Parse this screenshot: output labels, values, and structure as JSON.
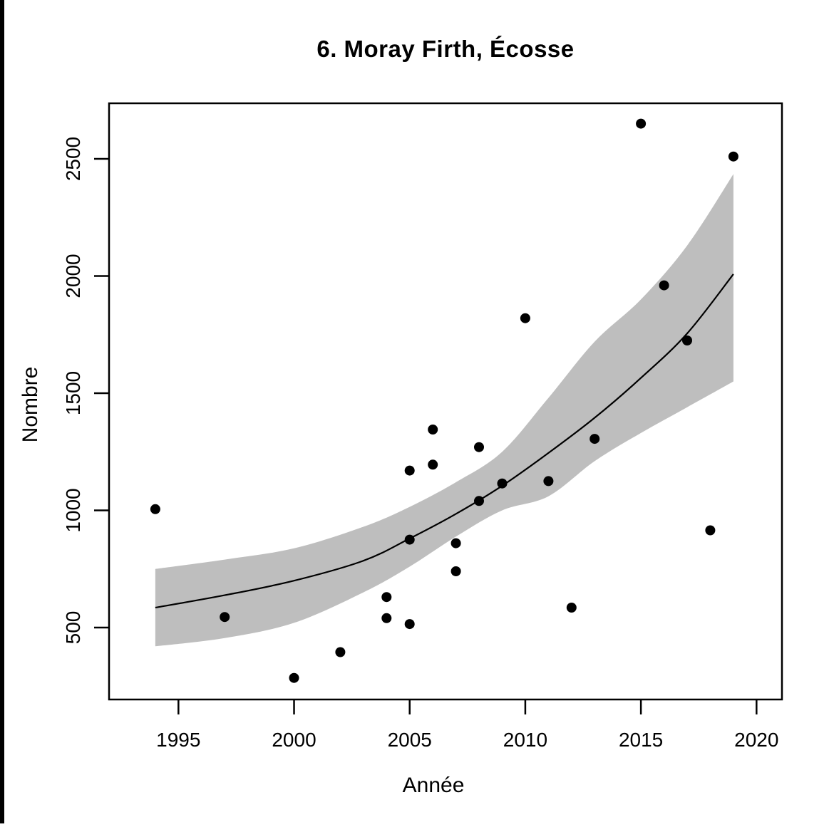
{
  "page": {
    "background": "#ffffff",
    "left_bar_color": "#000000"
  },
  "chart_data": {
    "type": "scatter",
    "title": "6. Moray Firth, Écosse",
    "xlabel": "Année",
    "ylabel": "Nombre",
    "x_ticks": [
      1995,
      2000,
      2005,
      2010,
      2015,
      2020
    ],
    "y_ticks": [
      500,
      1000,
      1500,
      2000,
      2500
    ],
    "xlim": [
      1992,
      2021.1
    ],
    "ylim": [
      193,
      2737
    ],
    "grid": false,
    "legend": "none",
    "point_color": "#000000",
    "line_color": "#000000",
    "band_color": "#BEBEBE",
    "points": [
      [
        1994,
        1005
      ],
      [
        1997,
        545
      ],
      [
        2000,
        285
      ],
      [
        2002,
        395
      ],
      [
        2004,
        630
      ],
      [
        2004,
        540
      ],
      [
        2005,
        1170
      ],
      [
        2005,
        875
      ],
      [
        2005,
        515
      ],
      [
        2006,
        1345
      ],
      [
        2006,
        1195
      ],
      [
        2007,
        860
      ],
      [
        2007,
        740
      ],
      [
        2008,
        1270
      ],
      [
        2008,
        1040
      ],
      [
        2009,
        1115
      ],
      [
        2010,
        1820
      ],
      [
        2011,
        1125
      ],
      [
        2012,
        585
      ],
      [
        2013,
        1305
      ],
      [
        2015,
        2650
      ],
      [
        2016,
        1960
      ],
      [
        2017,
        1725
      ],
      [
        2018,
        915
      ],
      [
        2019,
        2510
      ]
    ],
    "trend": {
      "label": "fitted-curve",
      "x": [
        1994,
        1997,
        2000,
        2003,
        2005,
        2007,
        2009,
        2011,
        2013,
        2015,
        2017,
        2019
      ],
      "y": [
        585,
        638,
        700,
        785,
        880,
        985,
        1105,
        1245,
        1395,
        1565,
        1755,
        2008
      ]
    },
    "band": {
      "label": "confidence-band",
      "x": [
        1994,
        1997,
        2000,
        2003,
        2005,
        2007,
        2009,
        2011,
        2013,
        2015,
        2017,
        2019
      ],
      "upper": [
        750,
        790,
        838,
        930,
        1015,
        1120,
        1250,
        1480,
        1720,
        1900,
        2130,
        2435
      ],
      "lower": [
        420,
        455,
        520,
        650,
        760,
        888,
        1000,
        1060,
        1210,
        1330,
        1440,
        1550
      ]
    }
  }
}
